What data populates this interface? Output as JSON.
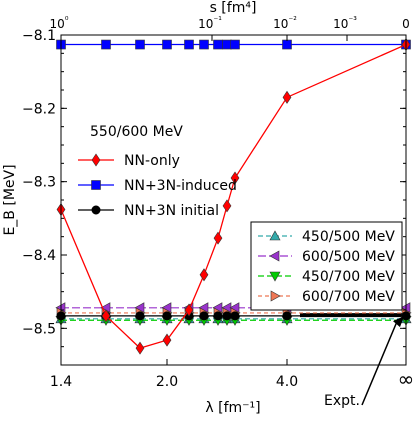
{
  "chart_data": {
    "type": "line",
    "title": "",
    "xlabel_bottom": "λ [fm⁻¹]",
    "xlabel_top": "s [fm⁴]",
    "ylabel": "E_B [MeV]",
    "ylim": [
      -8.55,
      -8.1
    ],
    "xlim": [
      1.4,
      "∞"
    ],
    "x_ticks_bottom": [
      "1.4",
      "2.0",
      "4.0",
      "∞"
    ],
    "x_ticks_top": [
      "10⁰",
      "10⁻¹",
      "10⁻²",
      "10⁻³",
      "0"
    ],
    "y_ticks": [
      -8.1,
      -8.2,
      -8.3,
      -8.4,
      -8.5
    ],
    "legend_upper": {
      "title": "550/600 MeV",
      "placement": "center-left",
      "entries": [
        "NN-only",
        "NN+3N-induced",
        "NN+3N initial"
      ]
    },
    "legend_lower": {
      "placement": "center-right",
      "entries": [
        "450/500 MeV",
        "600/500 MeV",
        "450/700 MeV",
        "600/700 MeV"
      ]
    },
    "annotation": {
      "text": "Expt.",
      "value": -8.482
    },
    "x_lambda": [
      1.4,
      1.6,
      1.8,
      2.0,
      2.2,
      2.4,
      2.6,
      2.8,
      3.0,
      3.2,
      4.0,
      "∞"
    ],
    "series": [
      {
        "name": "NN-only",
        "color": "#ff0000",
        "marker": "diamond",
        "values": [
          -8.338,
          -8.483,
          -8.527,
          -8.516,
          -8.475,
          -8.427,
          -8.377,
          -8.333,
          -8.295,
          null,
          -8.185,
          -8.113
        ]
      },
      {
        "name": "NN+3N-induced",
        "color": "#0000ff",
        "marker": "square",
        "values": [
          -8.113,
          -8.113,
          -8.113,
          -8.113,
          -8.113,
          -8.113,
          -8.113,
          -8.113,
          -8.113,
          null,
          -8.113,
          -8.113
        ]
      },
      {
        "name": "NN+3N initial",
        "color": "#000000",
        "marker": "circle",
        "values": [
          -8.483,
          -8.483,
          -8.483,
          -8.483,
          -8.483,
          -8.483,
          -8.483,
          -8.483,
          -8.483,
          null,
          -8.483,
          -8.483
        ]
      },
      {
        "name": "450/500 MeV",
        "color": "#33aaaa",
        "marker": "triangle-up",
        "values": [
          -8.487,
          -8.487,
          -8.487,
          -8.487,
          -8.487,
          -8.487,
          -8.487,
          -8.487,
          -8.487,
          null,
          -8.487,
          -8.487
        ]
      },
      {
        "name": "600/500 MeV",
        "color": "#9933cc",
        "marker": "triangle-left",
        "values": [
          -8.472,
          -8.472,
          -8.472,
          -8.472,
          -8.472,
          -8.472,
          -8.472,
          -8.472,
          -8.472,
          null,
          -8.472,
          -8.472
        ]
      },
      {
        "name": "450/700 MeV",
        "color": "#00cc00",
        "marker": "triangle-down",
        "values": [
          -8.489,
          -8.489,
          -8.489,
          -8.489,
          -8.489,
          -8.489,
          -8.489,
          -8.489,
          -8.489,
          null,
          -8.489,
          -8.489
        ]
      },
      {
        "name": "600/700 MeV",
        "color": "#ee7755",
        "marker": "triangle-right",
        "values": [
          -8.479,
          -8.479,
          -8.479,
          -8.479,
          -8.479,
          -8.479,
          -8.479,
          -8.479,
          -8.479,
          null,
          -8.479,
          -8.479
        ]
      }
    ]
  }
}
